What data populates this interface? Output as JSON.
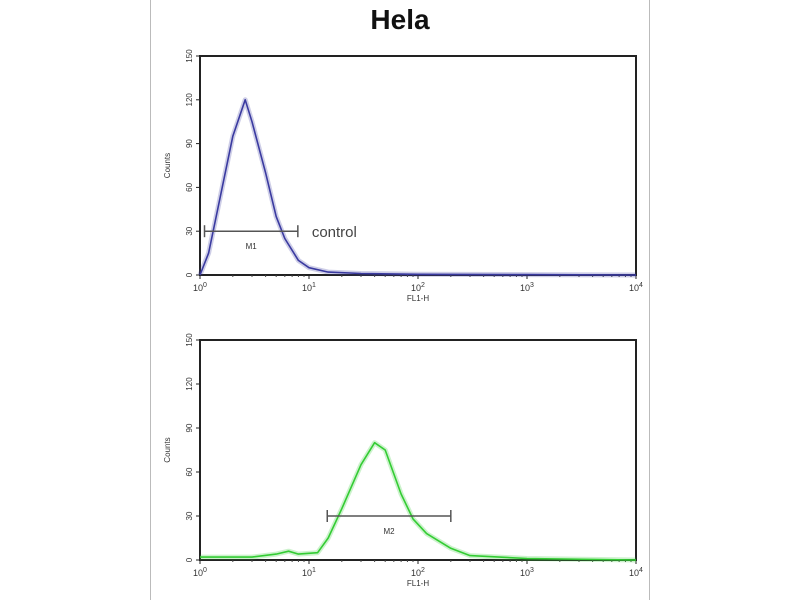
{
  "title": "Hela",
  "chart_data": [
    {
      "type": "line",
      "xlabel": "FL1-H",
      "ylabel": "Counts",
      "xscale": "log",
      "xlim": [
        1,
        10000
      ],
      "ylim": [
        0,
        150
      ],
      "xticks": [
        1,
        10,
        100,
        1000,
        10000
      ],
      "xtick_labels": [
        "10^0",
        "10^1",
        "10^2",
        "10^3",
        "10^4"
      ],
      "yticks": [
        0,
        30,
        60,
        90,
        120,
        150
      ],
      "color": "#3a3aa0",
      "series": [
        {
          "name": "control",
          "x": [
            1,
            1.2,
            1.5,
            2,
            2.6,
            3,
            4,
            5,
            6,
            8,
            10,
            15,
            30,
            100,
            1000,
            10000
          ],
          "y": [
            0,
            15,
            50,
            95,
            120,
            105,
            70,
            40,
            25,
            10,
            5,
            2,
            1,
            0.5,
            0.3,
            0
          ]
        }
      ],
      "gate": {
        "label": "M1",
        "from": 1.1,
        "to": 7.9,
        "level": 30
      },
      "annotation": "control"
    },
    {
      "type": "line",
      "xlabel": "FL1-H",
      "ylabel": "Counts",
      "xscale": "log",
      "xlim": [
        1,
        10000
      ],
      "ylim": [
        0,
        150
      ],
      "xticks": [
        1,
        10,
        100,
        1000,
        10000
      ],
      "xtick_labels": [
        "10^0",
        "10^1",
        "10^2",
        "10^3",
        "10^4"
      ],
      "yticks": [
        0,
        30,
        60,
        90,
        120,
        150
      ],
      "color": "#33cc33",
      "series": [
        {
          "x": [
            1,
            3,
            5,
            6.5,
            8,
            12,
            15,
            20,
            30,
            40,
            50,
            70,
            90,
            120,
            200,
            300,
            1000,
            10000
          ],
          "y": [
            2,
            2,
            4,
            6,
            4,
            5,
            15,
            35,
            65,
            80,
            75,
            45,
            28,
            18,
            8,
            3,
            1,
            0
          ]
        }
      ],
      "gate": {
        "label": "M2",
        "from": 14.7,
        "to": 200,
        "level": 30
      }
    }
  ]
}
